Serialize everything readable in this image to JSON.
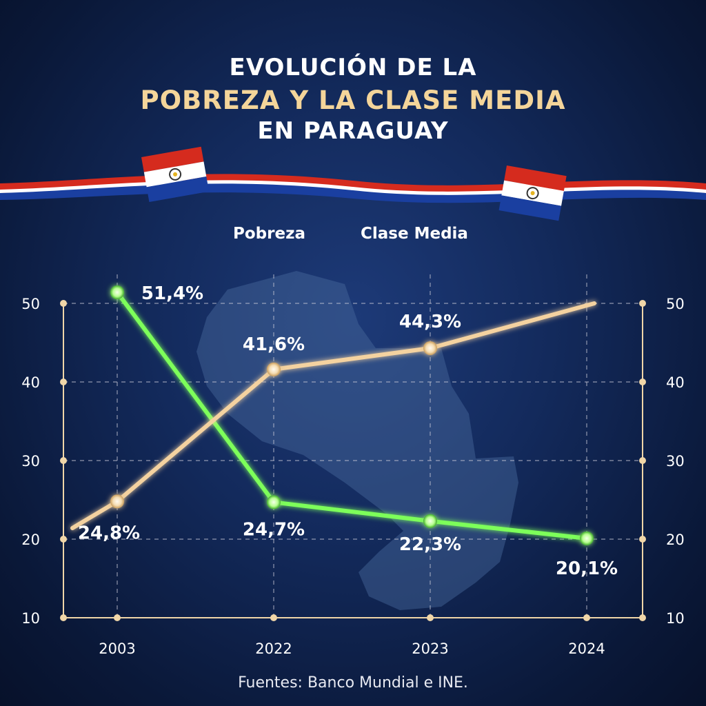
{
  "title": {
    "line1": "EVOLUCIÓN DE LA",
    "line2": "POBREZA Y LA CLASE MEDIA",
    "line3": "EN PARAGUAY"
  },
  "source": "Fuentes: Banco Mundial e INE.",
  "colors": {
    "pobreza": "#7dff5a",
    "clase_media": "#f4d2a0",
    "title_accent": "#f4d59a"
  },
  "chart_data": {
    "type": "line",
    "categories": [
      "2003",
      "2022",
      "2023",
      "2024"
    ],
    "ylim": [
      10,
      50
    ],
    "yticks": [
      "10",
      "20",
      "30",
      "40",
      "50"
    ],
    "grid": true,
    "legend_position": "top-center",
    "series": [
      {
        "name": "Pobreza",
        "values": [
          51.4,
          24.7,
          22.3,
          20.1
        ],
        "labels": [
          "51,4%",
          "24,7%",
          "22,3%",
          "20,1%"
        ]
      },
      {
        "name": "Clase Media",
        "values": [
          24.8,
          41.6,
          44.3,
          null
        ],
        "labels": [
          "24,8%",
          "41,6%",
          "44,3%",
          ""
        ]
      }
    ]
  }
}
